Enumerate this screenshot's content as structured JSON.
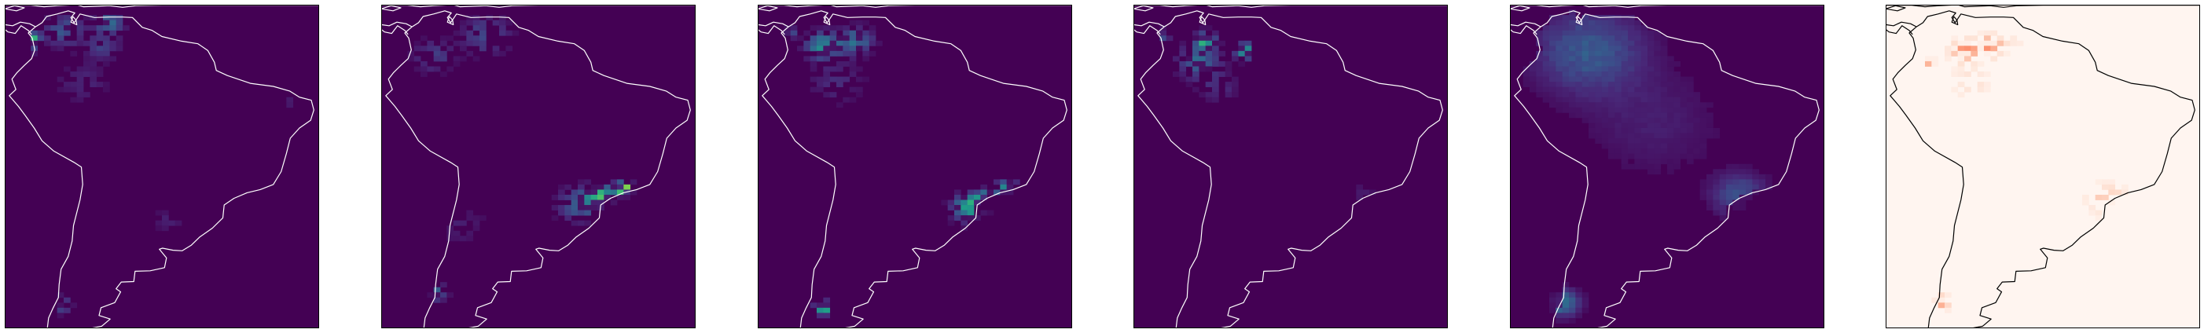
{
  "figure": {
    "background": "#ffffff"
  },
  "chart_data": [
    {
      "type": "heatmap",
      "colormap": "viridis",
      "background_color": "#440154",
      "coastline_color": "#ffffff",
      "grid": false,
      "hotspots": [
        {
          "lon": -77.5,
          "lat": 4.5,
          "intensity": 1.0,
          "radius": 0.6
        },
        {
          "lon": -77.5,
          "lat": 6.5,
          "intensity": 0.55,
          "radius": 1.0
        },
        {
          "lon": -73.0,
          "lat": 8.0,
          "intensity": 0.25,
          "radius": 3.0
        },
        {
          "lon": -66.0,
          "lat": 9.5,
          "intensity": 0.35,
          "radius": 2.0
        },
        {
          "lon": -67.0,
          "lat": 5.0,
          "intensity": 0.18,
          "radius": 2.5
        },
        {
          "lon": -70.0,
          "lat": -2.0,
          "intensity": 0.1,
          "radius": 4.0
        },
        {
          "lon": -73.5,
          "lat": -45.5,
          "intensity": 0.3,
          "radius": 1.5
        },
        {
          "lon": -57.0,
          "lat": -29.0,
          "intensity": 0.1,
          "radius": 2.0
        },
        {
          "lon": -38.0,
          "lat": -6.0,
          "intensity": 0.08,
          "radius": 1.5
        }
      ]
    },
    {
      "type": "heatmap",
      "colormap": "viridis",
      "background_color": "#440154",
      "coastline_color": "#ffffff",
      "grid": false,
      "hotspots": [
        {
          "lon": -45.0,
          "lat": -23.0,
          "intensity": 1.0,
          "radius": 1.3
        },
        {
          "lon": -48.5,
          "lat": -24.5,
          "intensity": 0.65,
          "radius": 2.2
        },
        {
          "lon": -52.0,
          "lat": -26.0,
          "intensity": 0.3,
          "radius": 3.0
        },
        {
          "lon": -73.5,
          "lat": -43.0,
          "intensity": 0.35,
          "radius": 1.5
        },
        {
          "lon": -66.0,
          "lat": 7.0,
          "intensity": 0.22,
          "radius": 3.5
        },
        {
          "lon": -74.0,
          "lat": 3.0,
          "intensity": 0.18,
          "radius": 3.0
        },
        {
          "lon": -70.0,
          "lat": -30.0,
          "intensity": 0.08,
          "radius": 4.0
        }
      ]
    },
    {
      "type": "heatmap",
      "colormap": "viridis",
      "background_color": "#440154",
      "coastline_color": "#ffffff",
      "grid": false,
      "hotspots": [
        {
          "lon": -47.0,
          "lat": -25.0,
          "intensity": 0.85,
          "radius": 1.5
        },
        {
          "lon": -49.5,
          "lat": -26.5,
          "intensity": 0.6,
          "radius": 2.5
        },
        {
          "lon": -44.0,
          "lat": -22.5,
          "intensity": 0.5,
          "radius": 1.5
        },
        {
          "lon": -72.0,
          "lat": -46.0,
          "intensity": 0.7,
          "radius": 1.2
        },
        {
          "lon": -77.5,
          "lat": 7.5,
          "intensity": 0.5,
          "radius": 1.0
        },
        {
          "lon": -72.0,
          "lat": 5.0,
          "intensity": 0.45,
          "radius": 2.5
        },
        {
          "lon": -67.0,
          "lat": 6.0,
          "intensity": 0.35,
          "radius": 2.5
        },
        {
          "lon": -70.0,
          "lat": -2.0,
          "intensity": 0.12,
          "radius": 4.0
        }
      ]
    },
    {
      "type": "heatmap",
      "colormap": "viridis",
      "background_color": "#440154",
      "coastline_color": "#ffffff",
      "grid": false,
      "hotspots": [
        {
          "lon": -77.5,
          "lat": 7.5,
          "intensity": 0.6,
          "radius": 1.0
        },
        {
          "lon": -71.0,
          "lat": 6.0,
          "intensity": 0.6,
          "radius": 1.5
        },
        {
          "lon": -65.0,
          "lat": 4.0,
          "intensity": 0.5,
          "radius": 1.5
        },
        {
          "lon": -72.0,
          "lat": 2.0,
          "intensity": 0.35,
          "radius": 3.0
        },
        {
          "lon": -69.0,
          "lat": -3.0,
          "intensity": 0.12,
          "radius": 3.0
        },
        {
          "lon": -47.0,
          "lat": -23.5,
          "intensity": 0.08,
          "radius": 2.0
        }
      ]
    },
    {
      "type": "heatmap",
      "colormap": "viridis",
      "background_color": "#440154",
      "coastline_color": "#ffffff",
      "grid": false,
      "smooth": true,
      "hotspots": [
        {
          "lon": -70.0,
          "lat": 4.0,
          "intensity": 0.28,
          "radius": 8.0
        },
        {
          "lon": -74.0,
          "lat": -45.0,
          "intensity": 0.4,
          "radius": 2.5
        },
        {
          "lon": -47.0,
          "lat": -24.0,
          "intensity": 0.25,
          "radius": 4.0
        },
        {
          "lon": -60.0,
          "lat": -10.0,
          "intensity": 0.08,
          "radius": 10.0
        }
      ]
    },
    {
      "type": "heatmap",
      "colormap": "Reds",
      "background_color": "#fff5f0",
      "coastline_color": "#000000",
      "grid": false,
      "hotspots": [
        {
          "lon": -62.5,
          "lat": 6.0,
          "intensity": 0.75,
          "radius": 0.7
        },
        {
          "lon": -75.0,
          "lat": 2.0,
          "intensity": 0.75,
          "radius": 0.7
        },
        {
          "lon": -70.0,
          "lat": 4.0,
          "intensity": 0.45,
          "radius": 2.0
        },
        {
          "lon": -66.0,
          "lat": 5.0,
          "intensity": 0.4,
          "radius": 2.0
        },
        {
          "lon": -74.0,
          "lat": -45.0,
          "intensity": 0.4,
          "radius": 1.5
        },
        {
          "lon": -48.0,
          "lat": -25.0,
          "intensity": 0.22,
          "radius": 3.0
        },
        {
          "lon": -69.0,
          "lat": -2.0,
          "intensity": 0.12,
          "radius": 3.0
        }
      ]
    }
  ]
}
